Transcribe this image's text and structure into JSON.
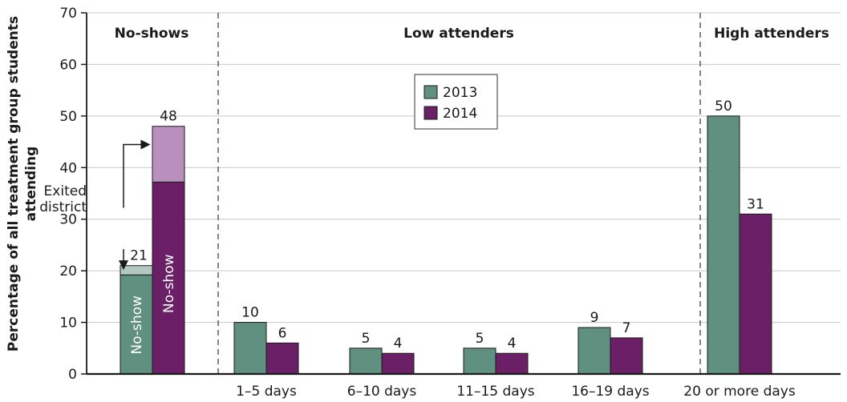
{
  "colors": {
    "series_2013": "#5f9080",
    "series_2014": "#6b1f66",
    "exited_2013": "#b3c8c0",
    "exited_2014": "#b98fbd",
    "grid": "#c8c8c8",
    "axis": "#1a1a1a"
  },
  "chart_data": {
    "type": "bar",
    "ylabel": "Percentage of all treatment group students attending",
    "ylim": [
      0,
      70
    ],
    "yticks": [
      0,
      10,
      20,
      30,
      40,
      50,
      60,
      70
    ],
    "grid": true,
    "legend": {
      "placement": "top-center",
      "entries": [
        "2013",
        "2014"
      ]
    },
    "groups": [
      {
        "label": "No-shows"
      },
      {
        "label": "Low attenders"
      },
      {
        "label": "High attenders"
      }
    ],
    "categories": [
      "",
      "1–5 days",
      "6–10 days",
      "11–15 days",
      "16–19 days",
      "20 or more days"
    ],
    "series": [
      {
        "name": "2013",
        "values": [
          21,
          10,
          5,
          5,
          9,
          50
        ]
      },
      {
        "name": "2014",
        "values": [
          48,
          6,
          4,
          4,
          7,
          31
        ]
      }
    ],
    "no_show_split": {
      "segment_label": "No-show",
      "annotation": [
        "Exited",
        "district"
      ],
      "y2013_noshow": 19.2,
      "y2014_noshow": 37.2
    }
  }
}
